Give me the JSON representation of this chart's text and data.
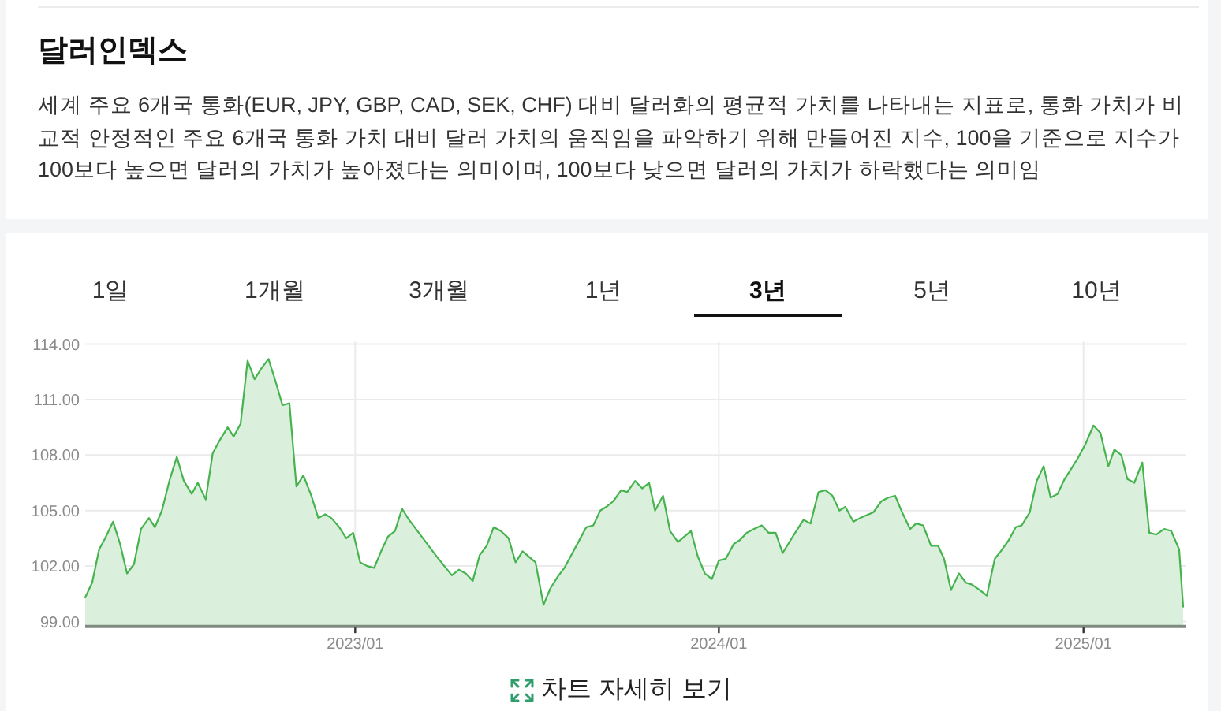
{
  "chart_data": [
    {
      "type": "other",
      "title": "달러인덱스",
      "subtitle": "세계 주요 6개국 통화(EUR, JPY, GBP, CAD, SEK, CHF) 대비 달러화의 평균적 가치를 나타내는 지표로, 통화 가치가 비교적 안정적인 주요 6개국 통화 가치 대비 달러 가치의 움직임을 파악하기 위해 만들어진 지수, 100을 기준으로 지수가 100보다 높으면 달러의 가치가 높아졌다는 의미이며, 100보다 낮으면 달러의 가치가 하락했다는 의미임"
    },
    {
      "type": "area",
      "annotations": [
        "1일",
        "1개월",
        "3개월",
        "1년",
        "3년",
        "5년",
        "10년",
        "차트 자세히 보기"
      ],
      "x": [
        "2022-04-05",
        "2022-04-12",
        "2022-04-19",
        "2022-04-25",
        "2022-05-03",
        "2022-05-10",
        "2022-05-17",
        "2022-05-24",
        "2022-05-31",
        "2022-06-08",
        "2022-06-14",
        "2022-06-21",
        "2022-06-29",
        "2022-07-06",
        "2022-07-13",
        "2022-07-21",
        "2022-07-27",
        "2022-08-04",
        "2022-08-11",
        "2022-08-18",
        "2022-08-26",
        "2022-09-01",
        "2022-09-08",
        "2022-09-15",
        "2022-09-22",
        "2022-09-29",
        "2022-10-06",
        "2022-10-13",
        "2022-10-20",
        "2022-10-27",
        "2022-11-03",
        "2022-11-10",
        "2022-11-18",
        "2022-11-25",
        "2022-12-02",
        "2022-12-08",
        "2022-12-16",
        "2022-12-23",
        "2022-12-30",
        "2023-01-06",
        "2023-01-13",
        "2023-01-20",
        "2023-01-27",
        "2023-02-03",
        "2023-02-10",
        "2023-02-17",
        "2023-02-24",
        "2023-03-10",
        "2023-03-24",
        "2023-04-08",
        "2023-04-15",
        "2023-04-22",
        "2023-04-29",
        "2023-05-06",
        "2023-05-13",
        "2023-05-20",
        "2023-05-27",
        "2023-06-04",
        "2023-06-11",
        "2023-06-18",
        "2023-07-01",
        "2023-07-09",
        "2023-07-16",
        "2023-07-23",
        "2023-07-30",
        "2023-08-06",
        "2023-08-13",
        "2023-08-21",
        "2023-08-28",
        "2023-09-04",
        "2023-09-10",
        "2023-09-17",
        "2023-09-25",
        "2023-10-01",
        "2023-10-09",
        "2023-10-16",
        "2023-10-23",
        "2023-10-29",
        "2023-11-06",
        "2023-11-13",
        "2023-11-21",
        "2023-12-04",
        "2023-12-11",
        "2023-12-18",
        "2023-12-25",
        "2024-01-01",
        "2024-01-08",
        "2024-01-16",
        "2024-01-22",
        "2024-01-29",
        "2024-02-05",
        "2024-02-13",
        "2024-02-20",
        "2024-02-27",
        "2024-03-05",
        "2024-03-13",
        "2024-03-20",
        "2024-03-26",
        "2024-04-02",
        "2024-04-10",
        "2024-04-17",
        "2024-04-24",
        "2024-05-01",
        "2024-05-07",
        "2024-05-15",
        "2024-05-22",
        "2024-06-04",
        "2024-06-12",
        "2024-06-19",
        "2024-06-26",
        "2024-07-03",
        "2024-07-11",
        "2024-07-17",
        "2024-07-24",
        "2024-08-01",
        "2024-08-08",
        "2024-08-14",
        "2024-08-21",
        "2024-08-29",
        "2024-09-05",
        "2024-09-11",
        "2024-09-19",
        "2024-09-26",
        "2024-10-04",
        "2024-10-10",
        "2024-10-18",
        "2024-10-25",
        "2024-10-31",
        "2024-11-08",
        "2024-11-15",
        "2024-11-22",
        "2024-11-29",
        "2024-12-06",
        "2024-12-13",
        "2024-12-19",
        "2024-12-26",
        "2025-01-03",
        "2025-01-11",
        "2025-01-18",
        "2025-01-26",
        "2025-02-01",
        "2025-02-08",
        "2025-02-14",
        "2025-02-21",
        "2025-03-01",
        "2025-03-08",
        "2025-03-15",
        "2025-03-23",
        "2025-03-30",
        "2025-04-07",
        "2025-04-11"
      ],
      "values": [
        100.3,
        101.1,
        102.9,
        103.5,
        104.4,
        103.2,
        101.6,
        102.1,
        104.0,
        104.6,
        104.1,
        105.0,
        106.7,
        107.9,
        106.6,
        105.9,
        106.5,
        105.6,
        108.1,
        108.8,
        109.5,
        109.0,
        109.7,
        113.1,
        112.1,
        112.7,
        113.2,
        112.0,
        110.7,
        110.8,
        106.3,
        106.9,
        105.8,
        104.6,
        104.8,
        104.6,
        104.1,
        103.5,
        103.8,
        102.2,
        102.0,
        101.9,
        102.8,
        103.6,
        103.9,
        105.1,
        104.5,
        103.5,
        102.5,
        101.5,
        101.8,
        101.6,
        101.2,
        102.6,
        103.1,
        104.1,
        103.9,
        103.5,
        102.2,
        102.8,
        102.2,
        99.9,
        100.8,
        101.4,
        101.9,
        102.6,
        103.3,
        104.1,
        104.2,
        105.0,
        105.2,
        105.5,
        106.1,
        106.0,
        106.6,
        106.2,
        106.5,
        105.0,
        105.8,
        103.9,
        103.3,
        103.9,
        102.5,
        101.6,
        101.3,
        102.3,
        102.4,
        103.2,
        103.4,
        103.8,
        104.0,
        104.2,
        103.8,
        103.8,
        102.7,
        103.4,
        104.0,
        104.5,
        104.3,
        106.0,
        106.1,
        105.8,
        105.0,
        105.2,
        104.4,
        104.6,
        104.9,
        105.5,
        105.7,
        105.8,
        104.9,
        104.0,
        104.3,
        104.2,
        103.1,
        103.1,
        102.4,
        100.7,
        101.6,
        101.1,
        101.0,
        100.7,
        100.4,
        102.4,
        102.8,
        103.4,
        104.1,
        104.2,
        104.9,
        106.6,
        107.4,
        105.7,
        105.9,
        106.7,
        107.2,
        107.8,
        108.6,
        109.6,
        109.2,
        107.4,
        108.3,
        108.0,
        106.7,
        106.5,
        107.6,
        103.8,
        103.7,
        104.0,
        103.9,
        102.9,
        99.8
      ],
      "color": "#46b34e",
      "xlim": [
        "2022-04-05",
        "2025-04-11"
      ],
      "ylim": [
        98.8,
        114.1
      ],
      "xticks": [
        {
          "value": "2023-01-01",
          "label": "2023/01"
        },
        {
          "value": "2024-01-01",
          "label": "2024/01"
        },
        {
          "value": "2025-01-01",
          "label": "2025/01"
        }
      ],
      "yticks": [
        {
          "value": 99,
          "label": "99.00"
        },
        {
          "value": 102,
          "label": "102.00"
        },
        {
          "value": 105,
          "label": "105.00"
        },
        {
          "value": 108,
          "label": "108.00"
        },
        {
          "value": 111,
          "label": "111.00"
        },
        {
          "value": 114,
          "label": "114.00"
        }
      ],
      "grid": true
    }
  ]
}
